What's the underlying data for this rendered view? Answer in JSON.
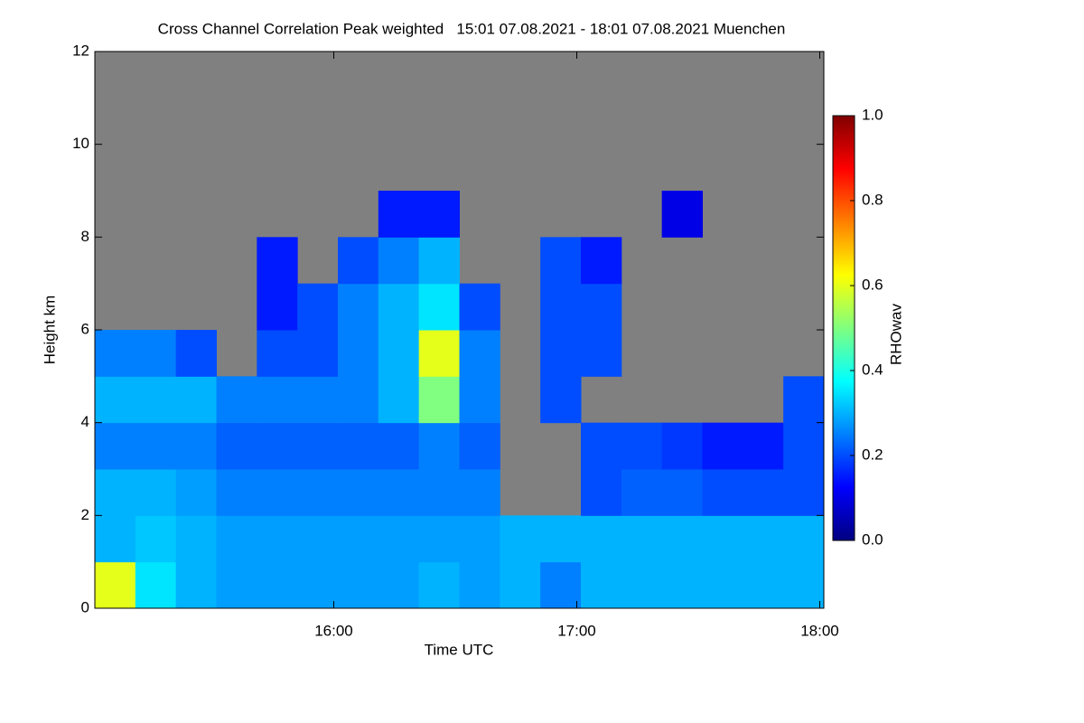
{
  "chart_data": {
    "type": "heatmap",
    "title": "Cross Channel Correlation Peak weighted   15:01 07.08.2021 - 18:01 07.08.2021 Muenchen",
    "x_label": "Time UTC",
    "y_label": "Height km",
    "colorbar_label": "RHOwav",
    "xlim": [
      15.0167,
      18.0167
    ],
    "xticks": [
      {
        "value": 16,
        "label": "16:00"
      },
      {
        "value": 17,
        "label": "17:00"
      },
      {
        "value": 18,
        "label": "18:00"
      }
    ],
    "ylim": [
      0,
      12
    ],
    "yticks": [
      0,
      2,
      4,
      6,
      8,
      10,
      12
    ],
    "clim": [
      0,
      1
    ],
    "cticks": [
      {
        "value": 0,
        "label": "0.0"
      },
      0.2,
      0.4,
      0.6,
      0.8,
      {
        "value": 1,
        "label": "1.0"
      }
    ],
    "colormap": "jet",
    "missing_color": "#808080",
    "xbins": [
      15.0167,
      15.1833,
      15.35,
      15.5167,
      15.6833,
      15.85,
      16.0167,
      16.1833,
      16.35,
      16.5167,
      16.6833,
      16.85,
      17.0167,
      17.1833,
      17.35,
      17.5167,
      17.6833,
      17.85,
      18.0167
    ],
    "ybins": [
      0,
      1,
      2,
      3,
      4,
      5,
      6,
      7,
      8,
      9,
      10,
      11,
      12
    ],
    "values": [
      [
        0.6,
        0.35,
        0.3,
        0.28,
        0.28,
        0.28,
        0.28,
        0.28,
        0.3,
        0.28,
        0.3,
        0.25,
        0.3,
        0.3,
        0.3,
        0.3,
        0.3,
        0.3
      ],
      [
        0.3,
        0.32,
        0.3,
        0.28,
        0.28,
        0.28,
        0.28,
        0.28,
        0.28,
        0.28,
        0.3,
        0.3,
        0.3,
        0.3,
        0.3,
        0.3,
        0.3,
        0.3
      ],
      [
        0.3,
        0.3,
        0.28,
        0.25,
        0.25,
        0.25,
        0.25,
        0.25,
        0.25,
        0.25,
        null,
        null,
        0.2,
        0.22,
        0.22,
        0.2,
        0.2,
        0.2
      ],
      [
        0.25,
        0.25,
        0.25,
        0.22,
        0.22,
        0.22,
        0.22,
        0.22,
        0.25,
        0.22,
        null,
        null,
        0.2,
        0.2,
        0.18,
        0.15,
        0.15,
        0.2
      ],
      [
        0.3,
        0.3,
        0.3,
        0.25,
        0.25,
        0.25,
        0.25,
        0.3,
        0.5,
        0.25,
        null,
        0.2,
        null,
        null,
        null,
        null,
        null,
        0.2
      ],
      [
        0.25,
        0.25,
        0.2,
        null,
        0.2,
        0.2,
        0.25,
        0.3,
        0.6,
        0.25,
        null,
        0.2,
        0.2,
        null,
        null,
        null,
        null,
        null
      ],
      [
        null,
        null,
        null,
        null,
        0.15,
        0.2,
        0.25,
        0.3,
        0.35,
        0.2,
        null,
        0.2,
        0.2,
        null,
        null,
        null,
        null,
        null
      ],
      [
        null,
        null,
        null,
        null,
        0.15,
        null,
        0.2,
        0.25,
        0.3,
        null,
        null,
        0.2,
        0.15,
        null,
        null,
        null,
        null,
        null
      ],
      [
        null,
        null,
        null,
        null,
        null,
        null,
        null,
        0.15,
        0.15,
        null,
        null,
        null,
        null,
        null,
        0.1,
        null,
        null,
        null
      ],
      [
        null,
        null,
        null,
        null,
        null,
        null,
        null,
        null,
        null,
        null,
        null,
        null,
        null,
        null,
        null,
        null,
        null,
        null
      ],
      [
        null,
        null,
        null,
        null,
        null,
        null,
        null,
        null,
        null,
        null,
        null,
        null,
        null,
        null,
        null,
        null,
        null,
        null
      ],
      [
        null,
        null,
        null,
        null,
        null,
        null,
        null,
        null,
        null,
        null,
        null,
        null,
        null,
        null,
        null,
        null,
        null,
        null
      ]
    ]
  }
}
